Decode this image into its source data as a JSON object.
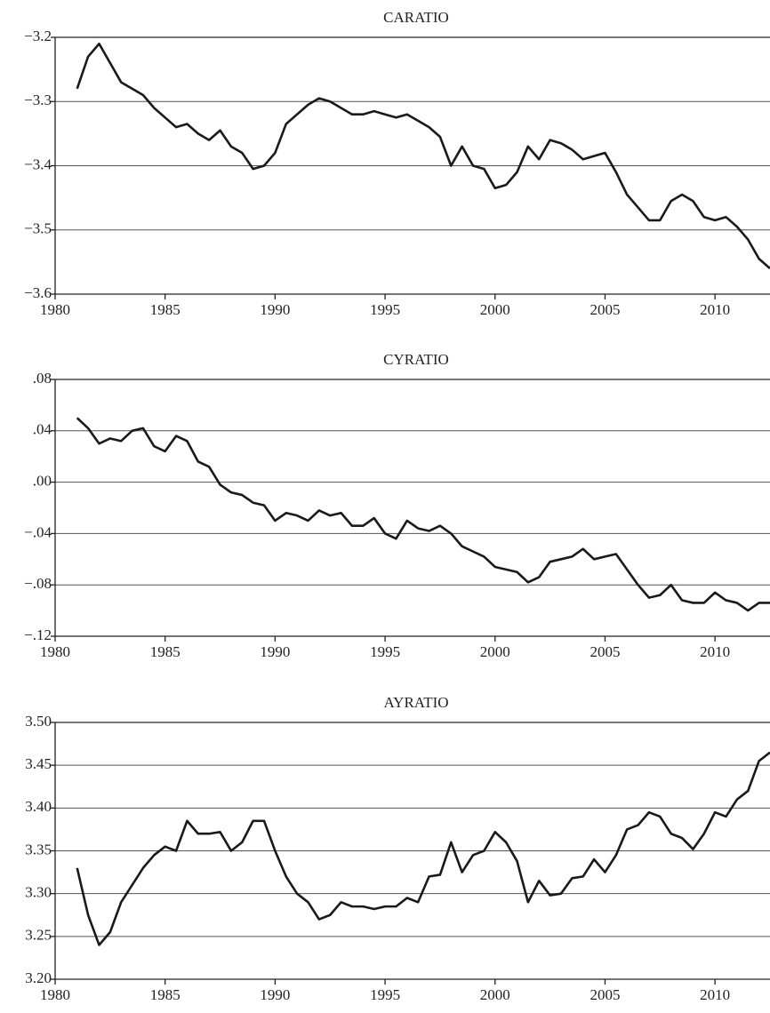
{
  "chart_data": [
    {
      "type": "line",
      "title": "CARATIO",
      "color": "#1a1a1a",
      "grid": true,
      "x": [
        1981,
        1981.5,
        1982,
        1982.5,
        1983,
        1983.5,
        1984,
        1984.5,
        1985,
        1985.5,
        1986,
        1986.5,
        1987,
        1987.5,
        1988,
        1988.5,
        1989,
        1989.5,
        1990,
        1990.5,
        1991,
        1991.5,
        1992,
        1992.5,
        1993,
        1993.5,
        1994,
        1994.5,
        1995,
        1995.5,
        1996,
        1996.5,
        1997,
        1997.5,
        1998,
        1998.5,
        1999,
        1999.5,
        2000,
        2000.5,
        2001,
        2001.5,
        2002,
        2002.5,
        2003,
        2003.5,
        2004,
        2004.5,
        2005,
        2005.5,
        2006,
        2006.5,
        2007,
        2007.5,
        2008,
        2008.5,
        2009,
        2009.5,
        2010,
        2010.5,
        2011,
        2011.5,
        2012,
        2012.5
      ],
      "values": [
        -3.28,
        -3.23,
        -3.21,
        -3.24,
        -3.27,
        -3.28,
        -3.29,
        -3.31,
        -3.325,
        -3.34,
        -3.335,
        -3.35,
        -3.36,
        -3.345,
        -3.37,
        -3.38,
        -3.405,
        -3.4,
        -3.38,
        -3.335,
        -3.32,
        -3.305,
        -3.295,
        -3.3,
        -3.31,
        -3.32,
        -3.32,
        -3.315,
        -3.32,
        -3.325,
        -3.32,
        -3.33,
        -3.34,
        -3.355,
        -3.4,
        -3.37,
        -3.4,
        -3.405,
        -3.435,
        -3.43,
        -3.41,
        -3.37,
        -3.39,
        -3.36,
        -3.365,
        -3.375,
        -3.39,
        -3.385,
        -3.38,
        -3.41,
        -3.445,
        -3.465,
        -3.485,
        -3.485,
        -3.455,
        -3.445,
        -3.455,
        -3.48,
        -3.485,
        -3.48,
        -3.495,
        -3.515,
        -3.545,
        -3.56
      ],
      "xlim": [
        1980,
        2012.5
      ],
      "xticks": [
        1980,
        1985,
        1990,
        1995,
        2000,
        2005,
        2010
      ],
      "ylim": [
        -3.6,
        -3.2
      ],
      "yticks": [
        {
          "value": -3.6,
          "label": "−3.6"
        },
        {
          "value": -3.5,
          "label": "−3.5"
        },
        {
          "value": -3.4,
          "label": "−3.4"
        },
        {
          "value": -3.3,
          "label": "−3.3"
        },
        {
          "value": -3.2,
          "label": "−3.2"
        }
      ]
    },
    {
      "type": "line",
      "title": "CYRATIO",
      "color": "#1a1a1a",
      "grid": true,
      "x": [
        1981,
        1981.5,
        1982,
        1982.5,
        1983,
        1983.5,
        1984,
        1984.5,
        1985,
        1985.5,
        1986,
        1986.5,
        1987,
        1987.5,
        1988,
        1988.5,
        1989,
        1989.5,
        1990,
        1990.5,
        1991,
        1991.5,
        1992,
        1992.5,
        1993,
        1993.5,
        1994,
        1994.5,
        1995,
        1995.5,
        1996,
        1996.5,
        1997,
        1997.5,
        1998,
        1998.5,
        1999,
        1999.5,
        2000,
        2000.5,
        2001,
        2001.5,
        2002,
        2002.5,
        2003,
        2003.5,
        2004,
        2004.5,
        2005,
        2005.5,
        2006,
        2006.5,
        2007,
        2007.5,
        2008,
        2008.5,
        2009,
        2009.5,
        2010,
        2010.5,
        2011,
        2011.5,
        2012,
        2012.5
      ],
      "values": [
        0.05,
        0.042,
        0.03,
        0.034,
        0.032,
        0.04,
        0.042,
        0.028,
        0.024,
        0.036,
        0.032,
        0.016,
        0.012,
        -0.002,
        -0.008,
        -0.01,
        -0.016,
        -0.018,
        -0.03,
        -0.024,
        -0.026,
        -0.03,
        -0.022,
        -0.026,
        -0.024,
        -0.034,
        -0.034,
        -0.028,
        -0.04,
        -0.044,
        -0.03,
        -0.036,
        -0.038,
        -0.034,
        -0.04,
        -0.05,
        -0.054,
        -0.058,
        -0.066,
        -0.068,
        -0.07,
        -0.078,
        -0.074,
        -0.062,
        -0.06,
        -0.058,
        -0.052,
        -0.06,
        -0.058,
        -0.056,
        -0.068,
        -0.08,
        -0.09,
        -0.088,
        -0.08,
        -0.092,
        -0.094,
        -0.094,
        -0.086,
        -0.092,
        -0.094,
        -0.1,
        -0.094,
        -0.094
      ],
      "xlim": [
        1980,
        2012.5
      ],
      "xticks": [
        1980,
        1985,
        1990,
        1995,
        2000,
        2005,
        2010
      ],
      "ylim": [
        -0.12,
        0.08
      ],
      "yticks": [
        {
          "value": -0.12,
          "label": "−.12"
        },
        {
          "value": -0.08,
          "label": "−.08"
        },
        {
          "value": -0.04,
          "label": "−.04"
        },
        {
          "value": 0,
          "label": ".00"
        },
        {
          "value": 0.04,
          "label": ".04"
        },
        {
          "value": 0.08,
          "label": ".08"
        }
      ]
    },
    {
      "type": "line",
      "title": "AYRATIO",
      "color": "#1a1a1a",
      "grid": true,
      "x": [
        1981,
        1981.5,
        1982,
        1982.5,
        1983,
        1983.5,
        1984,
        1984.5,
        1985,
        1985.5,
        1986,
        1986.5,
        1987,
        1987.5,
        1988,
        1988.5,
        1989,
        1989.5,
        1990,
        1990.5,
        1991,
        1991.5,
        1992,
        1992.5,
        1993,
        1993.5,
        1994,
        1994.5,
        1995,
        1995.5,
        1996,
        1996.5,
        1997,
        1997.5,
        1998,
        1998.5,
        1999,
        1999.5,
        2000,
        2000.5,
        2001,
        2001.5,
        2002,
        2002.5,
        2003,
        2003.5,
        2004,
        2004.5,
        2005,
        2005.5,
        2006,
        2006.5,
        2007,
        2007.5,
        2008,
        2008.5,
        2009,
        2009.5,
        2010,
        2010.5,
        2011,
        2011.5,
        2012,
        2012.5
      ],
      "values": [
        3.33,
        3.275,
        3.24,
        3.255,
        3.29,
        3.31,
        3.33,
        3.345,
        3.355,
        3.35,
        3.385,
        3.37,
        3.37,
        3.372,
        3.35,
        3.36,
        3.385,
        3.385,
        3.35,
        3.32,
        3.3,
        3.29,
        3.27,
        3.275,
        3.29,
        3.285,
        3.285,
        3.282,
        3.285,
        3.285,
        3.295,
        3.29,
        3.32,
        3.322,
        3.36,
        3.325,
        3.345,
        3.35,
        3.372,
        3.36,
        3.338,
        3.29,
        3.315,
        3.298,
        3.3,
        3.318,
        3.32,
        3.34,
        3.325,
        3.345,
        3.375,
        3.38,
        3.395,
        3.39,
        3.37,
        3.365,
        3.352,
        3.37,
        3.395,
        3.39,
        3.41,
        3.42,
        3.455,
        3.465
      ],
      "xlim": [
        1980,
        2012.5
      ],
      "xticks": [
        1980,
        1985,
        1990,
        1995,
        2000,
        2005,
        2010
      ],
      "ylim": [
        3.2,
        3.5
      ],
      "yticks": [
        {
          "value": 3.2,
          "label": "3.20"
        },
        {
          "value": 3.25,
          "label": "3.25"
        },
        {
          "value": 3.3,
          "label": "3.30"
        },
        {
          "value": 3.35,
          "label": "3.35"
        },
        {
          "value": 3.4,
          "label": "3.40"
        },
        {
          "value": 3.45,
          "label": "3.45"
        },
        {
          "value": 3.5,
          "label": "3.50"
        }
      ]
    }
  ]
}
